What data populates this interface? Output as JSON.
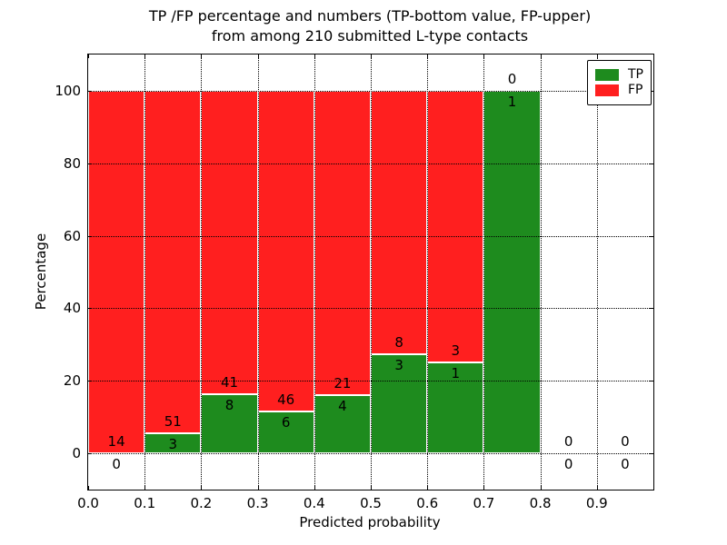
{
  "title": {
    "line1": "TP /FP percentage and numbers (TP-bottom value, FP-upper)",
    "line2": "from among 210 submitted L-type contacts"
  },
  "chart_data": {
    "type": "bar",
    "stacked": true,
    "title": "TP /FP percentage and numbers (TP-bottom value, FP-upper) from among 210 submitted L-type contacts",
    "xlabel": "Predicted probability",
    "ylabel": "Percentage",
    "xlim": [
      0.0,
      1.0
    ],
    "ylim": [
      -10,
      110
    ],
    "x_ticks": [
      "0.0",
      "0.1",
      "0.2",
      "0.3",
      "0.4",
      "0.5",
      "0.6",
      "0.7",
      "0.8",
      "0.9"
    ],
    "y_ticks": [
      0,
      20,
      40,
      60,
      80,
      100
    ],
    "grid": "dotted, drawn over bars",
    "legend_position": "upper right",
    "total_contacts": 210,
    "bar_edge_color": "#ffffff",
    "series": [
      {
        "name": "TP",
        "color": "#1e8b1e"
      },
      {
        "name": "FP",
        "color": "#ff1f1f"
      }
    ],
    "bins": [
      {
        "x_range": [
          0.0,
          0.1
        ],
        "tp_count": 0,
        "fp_count": 14,
        "tp_pct": 0,
        "fp_pct": 100
      },
      {
        "x_range": [
          0.1,
          0.2
        ],
        "tp_count": 3,
        "fp_count": 51,
        "tp_pct": 5.556,
        "fp_pct": 94.444
      },
      {
        "x_range": [
          0.2,
          0.3
        ],
        "tp_count": 8,
        "fp_count": 41,
        "tp_pct": 16.327,
        "fp_pct": 83.673
      },
      {
        "x_range": [
          0.3,
          0.4
        ],
        "tp_count": 6,
        "fp_count": 46,
        "tp_pct": 11.538,
        "fp_pct": 88.462
      },
      {
        "x_range": [
          0.4,
          0.5
        ],
        "tp_count": 4,
        "fp_count": 21,
        "tp_pct": 16.0,
        "fp_pct": 84.0
      },
      {
        "x_range": [
          0.5,
          0.6
        ],
        "tp_count": 3,
        "fp_count": 8,
        "tp_pct": 27.273,
        "fp_pct": 72.727
      },
      {
        "x_range": [
          0.6,
          0.7
        ],
        "tp_count": 1,
        "fp_count": 3,
        "tp_pct": 25.0,
        "fp_pct": 75.0
      },
      {
        "x_range": [
          0.7,
          0.8
        ],
        "tp_count": 1,
        "fp_count": 0,
        "tp_pct": 100,
        "fp_pct": 0
      },
      {
        "x_range": [
          0.8,
          0.9
        ],
        "tp_count": 0,
        "fp_count": 0,
        "tp_pct": 0,
        "fp_pct": 0
      },
      {
        "x_range": [
          0.9,
          1.0
        ],
        "tp_count": 0,
        "fp_count": 0,
        "tp_pct": 0,
        "fp_pct": 0
      }
    ]
  }
}
